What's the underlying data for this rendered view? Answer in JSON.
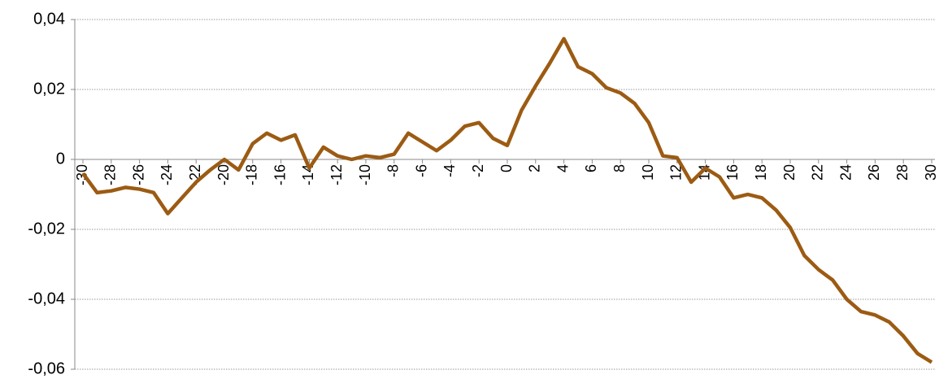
{
  "chart_data": {
    "type": "line",
    "x": [
      -30,
      -29,
      -28,
      -27,
      -26,
      -25,
      -24,
      -23,
      -22,
      -21,
      -20,
      -19,
      -18,
      -17,
      -16,
      -15,
      -14,
      -13,
      -12,
      -11,
      -10,
      -9,
      -8,
      -7,
      -6,
      -5,
      -4,
      -3,
      -2,
      -1,
      0,
      1,
      2,
      3,
      4,
      5,
      6,
      7,
      8,
      9,
      10,
      11,
      12,
      13,
      14,
      15,
      16,
      17,
      18,
      19,
      20,
      21,
      22,
      23,
      24,
      25,
      26,
      27,
      28,
      29,
      30
    ],
    "series": [
      {
        "color": "#9c5b13",
        "values": [
          -0.004,
          -0.0095,
          -0.009,
          -0.008,
          -0.0085,
          -0.0095,
          -0.0155,
          -0.011,
          -0.0065,
          -0.003,
          0.0,
          -0.003,
          0.0045,
          0.0075,
          0.0055,
          0.007,
          -0.0025,
          0.0035,
          0.001,
          0.0,
          0.001,
          0.0005,
          0.0015,
          0.0075,
          0.005,
          0.0025,
          0.0055,
          0.0095,
          0.0105,
          0.006,
          0.004,
          0.014,
          0.021,
          0.0275,
          0.0345,
          0.0265,
          0.0245,
          0.0205,
          0.019,
          0.016,
          0.0105,
          0.001,
          0.0005,
          -0.0065,
          -0.0025,
          -0.005,
          -0.011,
          -0.01,
          -0.011,
          -0.0145,
          -0.0195,
          -0.0275,
          -0.0315,
          -0.0345,
          -0.04,
          -0.0435,
          -0.0445,
          -0.0465,
          -0.0505,
          -0.0555,
          -0.058
        ]
      }
    ],
    "xlim": [
      -30,
      30
    ],
    "xticks": [
      -30,
      -28,
      -26,
      -24,
      -22,
      -20,
      -18,
      -16,
      -14,
      -12,
      -10,
      -8,
      -6,
      -4,
      -2,
      0,
      2,
      4,
      6,
      8,
      10,
      12,
      14,
      16,
      18,
      20,
      22,
      24,
      26,
      28,
      30
    ],
    "ylim": [
      -0.06,
      0.04
    ],
    "yticks": [
      {
        "value": -0.06,
        "label": "-0,06"
      },
      {
        "value": -0.04,
        "label": "-0,04"
      },
      {
        "value": -0.02,
        "label": "-0,02"
      },
      0,
      {
        "value": 0.02,
        "label": "0,02"
      },
      {
        "value": 0.04,
        "label": "0,04"
      }
    ],
    "grid": true
  }
}
